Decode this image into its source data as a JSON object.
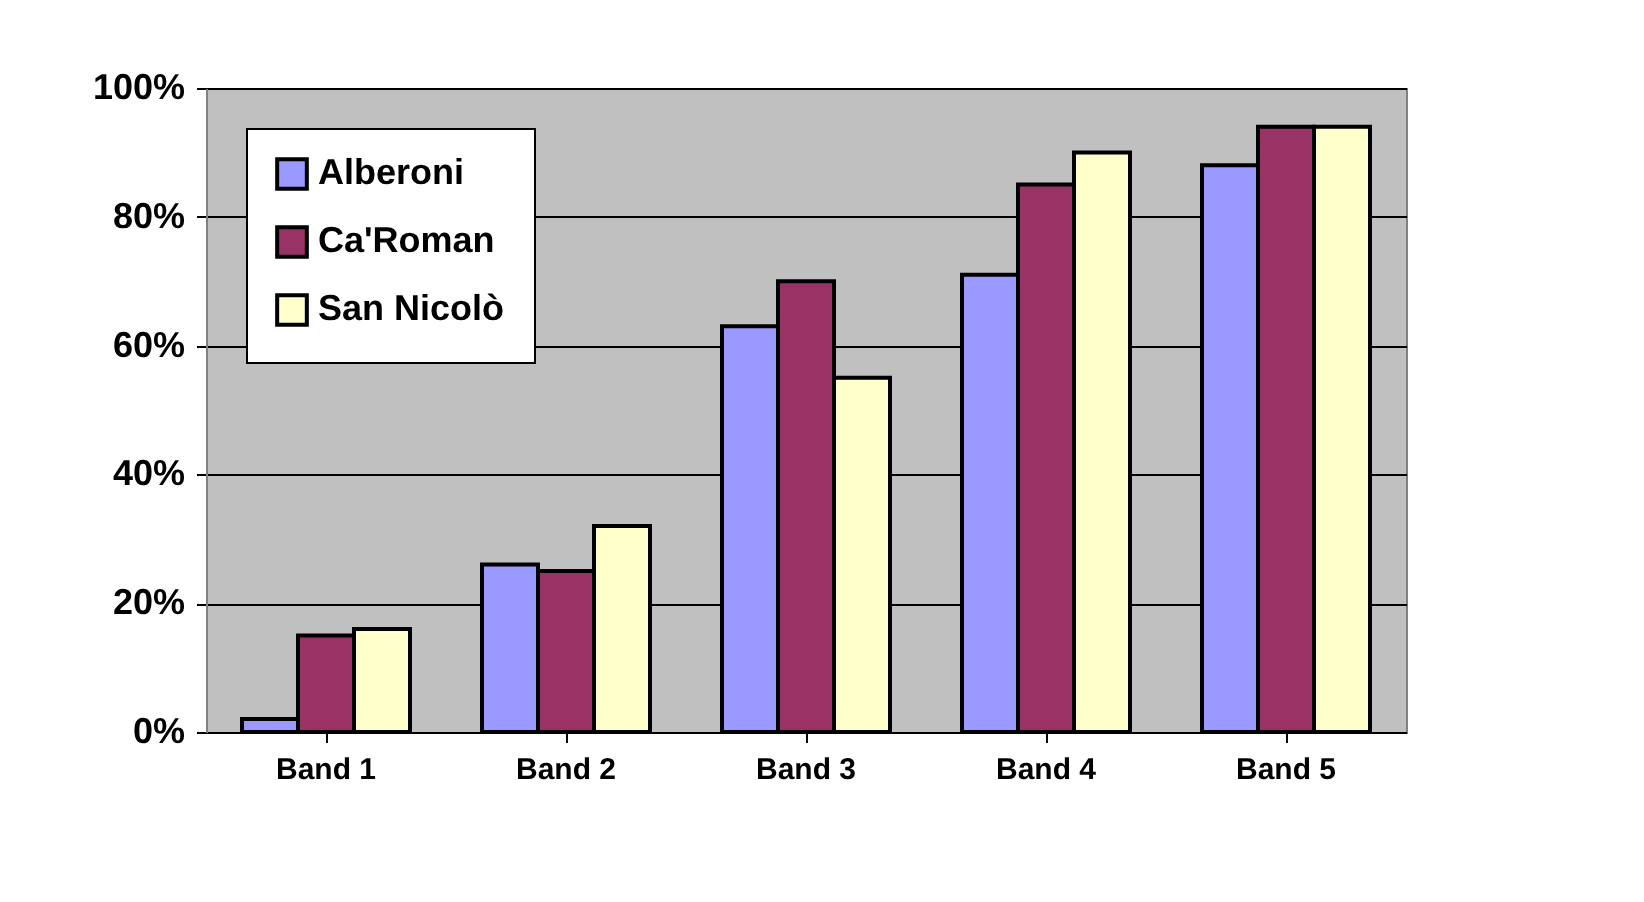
{
  "chart_data": {
    "type": "bar",
    "categories": [
      "Band 1",
      "Band 2",
      "Band 3",
      "Band 4",
      "Band 5"
    ],
    "series": [
      {
        "name": "Alberoni",
        "color": "#9999ff",
        "values": [
          2,
          26,
          63,
          71,
          88
        ]
      },
      {
        "name": "Ca'Roman",
        "color": "#993366",
        "values": [
          15,
          25,
          70,
          85,
          94
        ]
      },
      {
        "name": "San Nicolò",
        "color": "#ffffcc",
        "values": [
          16,
          32,
          55,
          90,
          94
        ]
      }
    ],
    "ylim": [
      0,
      100
    ],
    "yticks": [
      {
        "value": 0,
        "label": "0%"
      },
      {
        "value": 20,
        "label": "20%"
      },
      {
        "value": 40,
        "label": "40%"
      },
      {
        "value": 60,
        "label": "60%"
      },
      {
        "value": 80,
        "label": "80%"
      },
      {
        "value": 100,
        "label": "100%"
      }
    ],
    "grid": "y",
    "legend": "top left"
  }
}
